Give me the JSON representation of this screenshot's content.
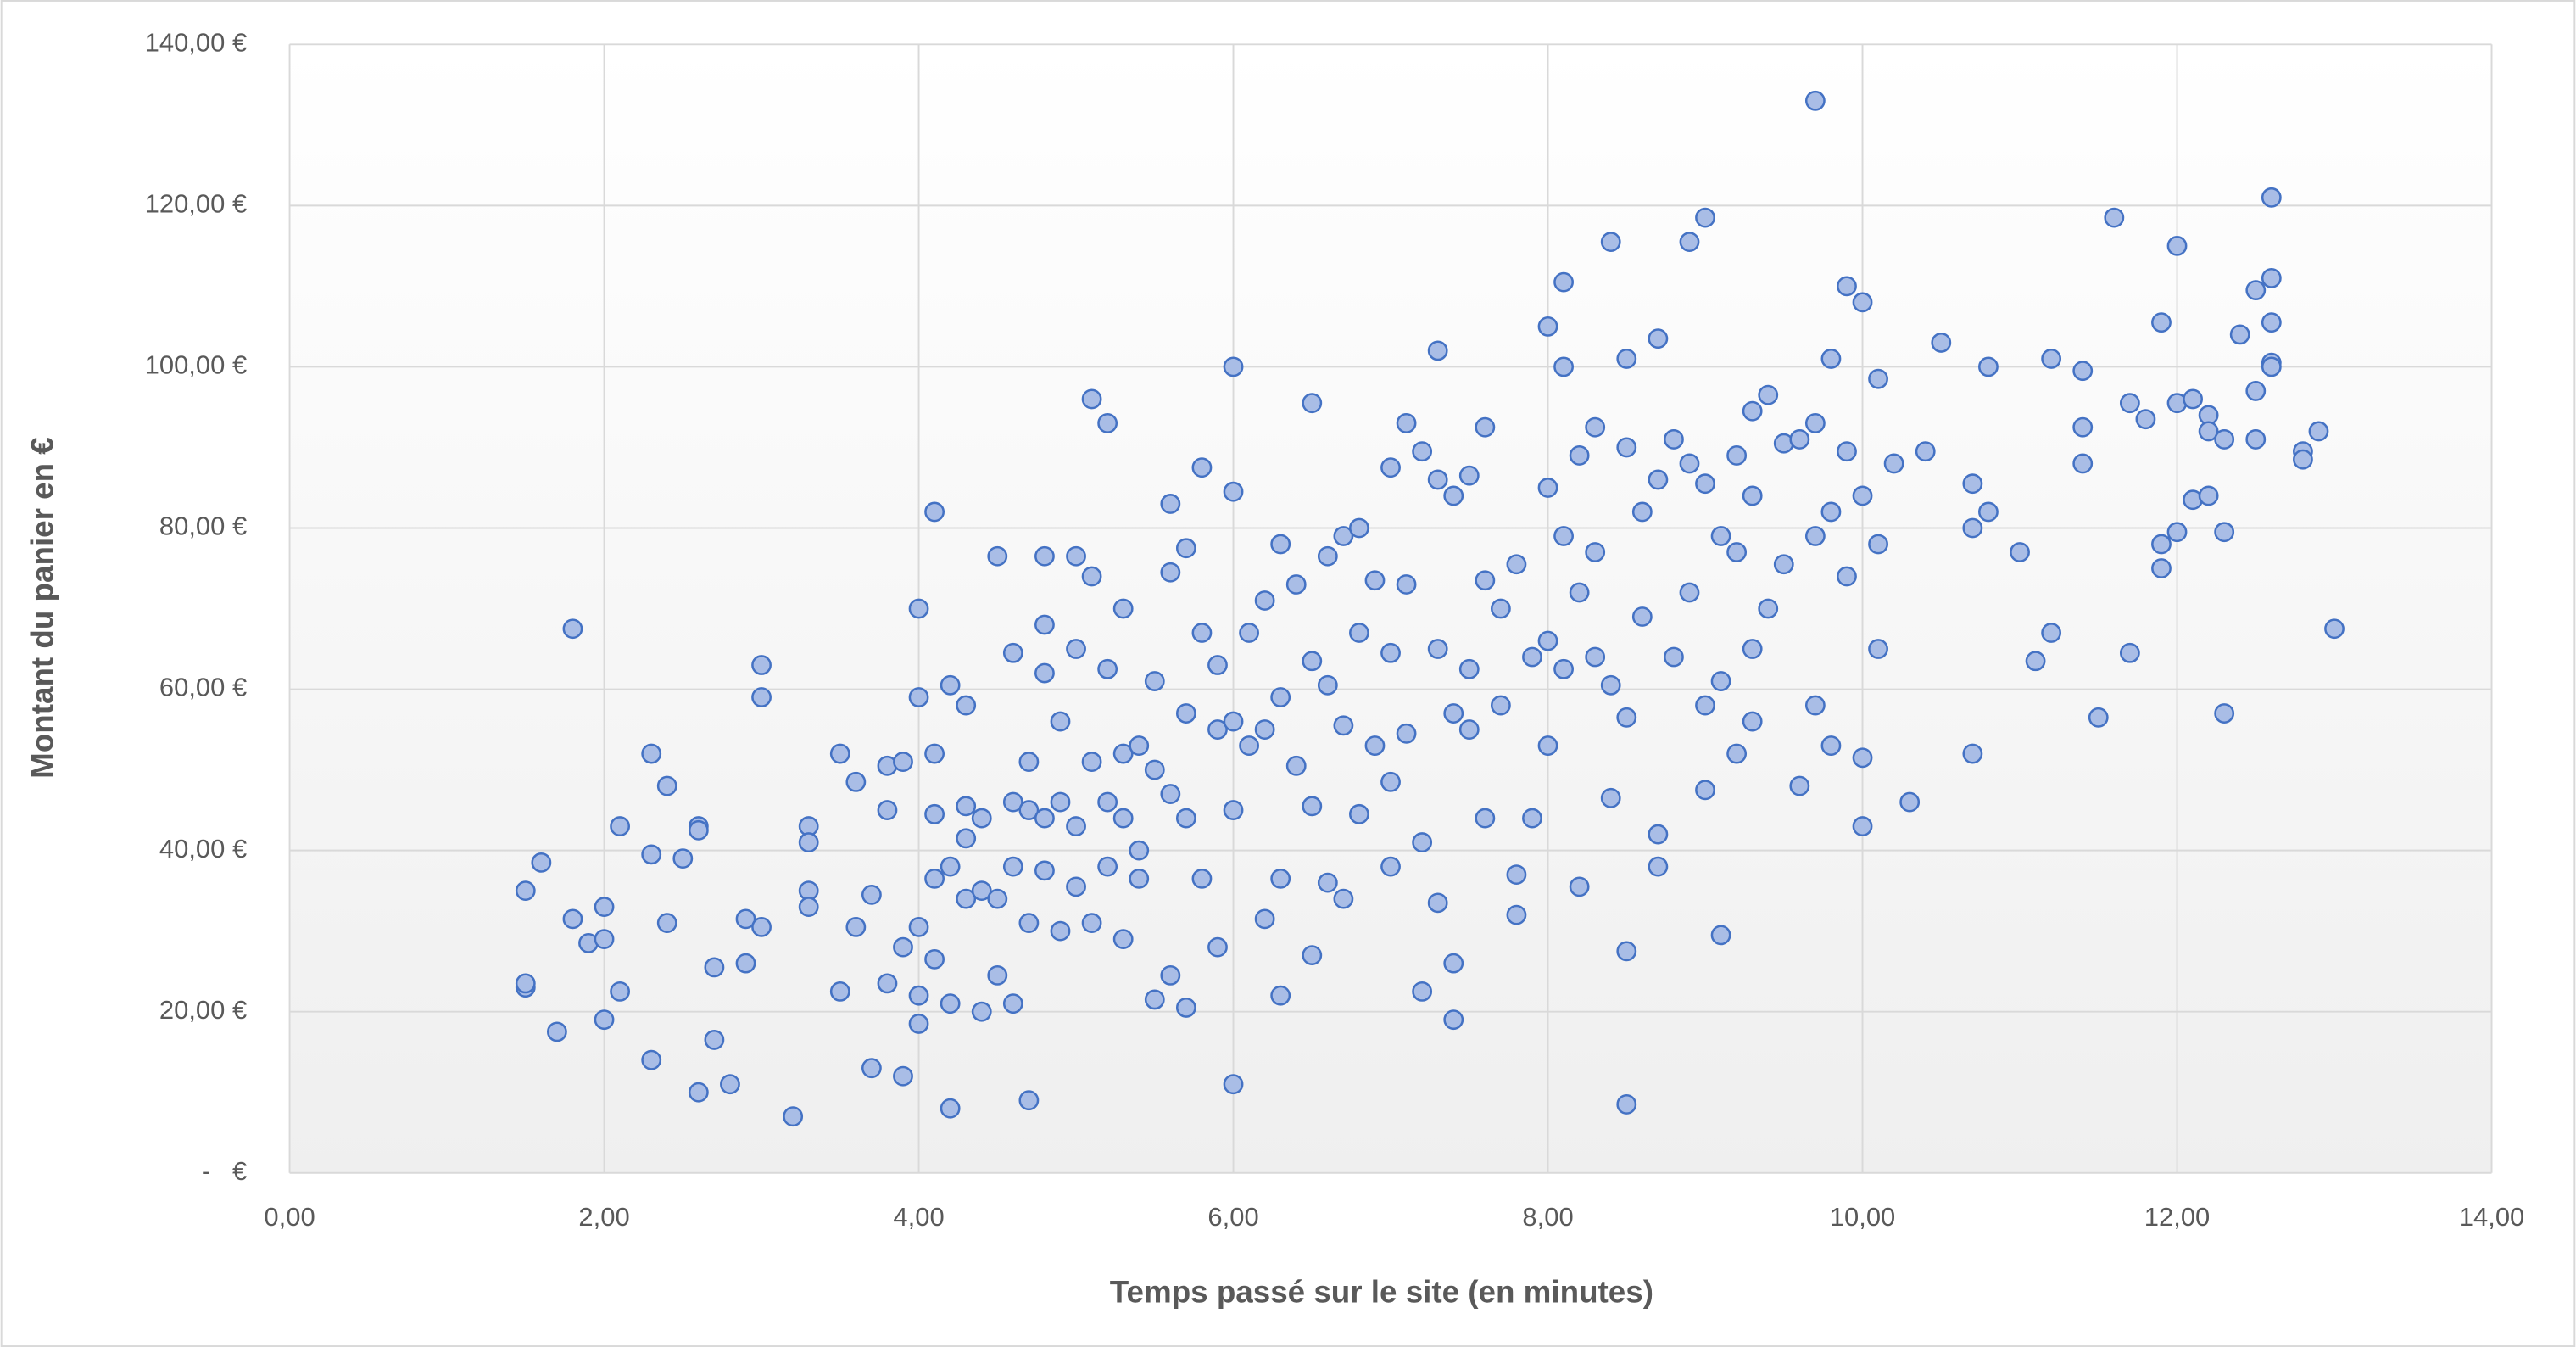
{
  "chart_data": {
    "type": "scatter",
    "x_label": "Temps passé sur le site (en minutes)",
    "y_label": "Montant du panier en €",
    "color": "#a9bde6",
    "edge_color": "#4472c4",
    "grid": true,
    "xlim": [
      0,
      14
    ],
    "ylim": [
      0,
      140
    ],
    "xticks": [
      {
        "value": 0,
        "label": "0,00"
      },
      {
        "value": 2,
        "label": "2,00"
      },
      {
        "value": 4,
        "label": "4,00"
      },
      {
        "value": 6,
        "label": "6,00"
      },
      {
        "value": 8,
        "label": "8,00"
      },
      {
        "value": 10,
        "label": "10,00"
      },
      {
        "value": 12,
        "label": "12,00"
      },
      {
        "value": 14,
        "label": "14,00"
      }
    ],
    "yticks": [
      {
        "value": 0,
        "label": "  -   €"
      },
      {
        "value": 20,
        "label": "20,00 €"
      },
      {
        "value": 40,
        "label": "40,00 €"
      },
      {
        "value": 60,
        "label": "60,00 €"
      },
      {
        "value": 80,
        "label": "80,00 €"
      },
      {
        "value": 100,
        "label": "100,00 €"
      },
      {
        "value": 120,
        "label": "120,00 €"
      },
      {
        "value": 140,
        "label": "140,00 €"
      }
    ],
    "x": [
      1.5,
      1.5,
      1.5,
      1.6,
      1.7,
      1.8,
      1.8,
      1.9,
      2.0,
      2.0,
      2.0,
      2.1,
      2.1,
      2.3,
      2.3,
      2.3,
      2.4,
      2.4,
      2.5,
      2.6,
      2.6,
      2.6,
      2.7,
      2.7,
      2.8,
      2.9,
      2.9,
      3.0,
      3.0,
      3.0,
      3.2,
      3.3,
      3.3,
      3.3,
      3.3,
      3.5,
      3.5,
      3.6,
      3.6,
      3.7,
      3.7,
      3.8,
      3.8,
      3.8,
      3.9,
      3.9,
      3.9,
      4.0,
      4.0,
      4.0,
      4.0,
      4.0,
      4.1,
      4.1,
      4.1,
      4.1,
      4.1,
      4.2,
      4.2,
      4.2,
      4.2,
      4.3,
      4.3,
      4.3,
      4.3,
      4.4,
      4.4,
      4.4,
      4.5,
      4.5,
      4.5,
      4.6,
      4.6,
      4.6,
      4.6,
      4.7,
      4.7,
      4.7,
      4.7,
      4.8,
      4.8,
      4.8,
      4.8,
      4.8,
      4.9,
      4.9,
      4.9,
      5.0,
      5.0,
      5.0,
      5.0,
      5.1,
      5.1,
      5.1,
      5.1,
      5.2,
      5.2,
      5.2,
      5.2,
      5.3,
      5.3,
      5.3,
      5.3,
      5.4,
      5.4,
      5.4,
      5.5,
      5.5,
      5.5,
      5.6,
      5.6,
      5.6,
      5.6,
      5.7,
      5.7,
      5.7,
      5.7,
      5.8,
      5.8,
      5.8,
      5.9,
      5.9,
      5.9,
      6.0,
      6.0,
      6.0,
      6.0,
      6.0,
      6.1,
      6.1,
      6.2,
      6.2,
      6.2,
      6.3,
      6.3,
      6.3,
      6.3,
      6.4,
      6.4,
      6.5,
      6.5,
      6.5,
      6.5,
      6.6,
      6.6,
      6.6,
      6.7,
      6.7,
      6.7,
      6.8,
      6.8,
      6.8,
      6.9,
      6.9,
      7.0,
      7.0,
      7.0,
      7.0,
      7.1,
      7.1,
      7.1,
      7.2,
      7.2,
      7.2,
      7.3,
      7.3,
      7.3,
      7.3,
      7.4,
      7.4,
      7.4,
      7.4,
      7.5,
      7.5,
      7.5,
      7.6,
      7.6,
      7.6,
      7.7,
      7.7,
      7.8,
      7.8,
      7.8,
      7.9,
      7.9,
      8.0,
      8.0,
      8.0,
      8.0,
      8.1,
      8.1,
      8.1,
      8.1,
      8.2,
      8.2,
      8.2,
      8.3,
      8.3,
      8.3,
      8.4,
      8.4,
      8.4,
      8.5,
      8.5,
      8.5,
      8.5,
      8.5,
      8.6,
      8.6,
      8.7,
      8.7,
      8.7,
      8.7,
      8.8,
      8.8,
      8.9,
      8.9,
      8.9,
      9.0,
      9.0,
      9.0,
      9.0,
      9.1,
      9.1,
      9.1,
      9.2,
      9.2,
      9.2,
      9.3,
      9.3,
      9.3,
      9.3,
      9.4,
      9.4,
      9.5,
      9.5,
      9.6,
      9.6,
      9.7,
      9.7,
      9.7,
      9.7,
      9.8,
      9.8,
      9.8,
      9.9,
      9.9,
      9.9,
      10.0,
      10.0,
      10.0,
      10.0,
      10.1,
      10.1,
      10.1,
      10.2,
      10.3,
      10.4,
      10.5,
      10.7,
      10.7,
      10.7,
      10.8,
      10.8,
      11.0,
      11.1,
      11.2,
      11.2,
      11.4,
      11.4,
      11.4,
      11.5,
      11.6,
      11.7,
      11.7,
      11.8,
      11.9,
      11.9,
      11.9,
      12.0,
      12.0,
      12.0,
      12.1,
      12.1,
      12.2,
      12.2,
      12.2,
      12.3,
      12.3,
      12.3,
      12.4,
      12.5,
      12.5,
      12.5,
      12.6,
      12.6,
      12.6,
      12.6,
      12.6,
      12.8,
      12.8,
      12.9,
      13.0
    ],
    "values": [
      23,
      23.5,
      35,
      38.5,
      17.5,
      67.5,
      31.5,
      28.5,
      33,
      29,
      19,
      43,
      22.5,
      52,
      39.5,
      14,
      48,
      31,
      39,
      43,
      42.5,
      10,
      25.5,
      16.5,
      11,
      31.5,
      26,
      63,
      59,
      30.5,
      7,
      43,
      41,
      35,
      33,
      52,
      22.5,
      48.5,
      30.5,
      34.5,
      13,
      50.5,
      45,
      23.5,
      51,
      28,
      12,
      59,
      70,
      30.5,
      22,
      18.5,
      82,
      52,
      44.5,
      36.5,
      26.5,
      60.5,
      38,
      21,
      8,
      58,
      45.5,
      41.5,
      34,
      44,
      35,
      20,
      76.5,
      34,
      24.5,
      64.5,
      46,
      38,
      21,
      51,
      45,
      31,
      9,
      76.5,
      68,
      62,
      44,
      37.5,
      56,
      46,
      30,
      76.5,
      65,
      43,
      35.5,
      96,
      74,
      51,
      31,
      93,
      62.5,
      46,
      38,
      70,
      52,
      44,
      29,
      53,
      40,
      36.5,
      61,
      50,
      21.5,
      83,
      74.5,
      47,
      24.5,
      77.5,
      57,
      44,
      20.5,
      87.5,
      67,
      36.5,
      63,
      55,
      28,
      100,
      84.5,
      56,
      45,
      11,
      67,
      53,
      71,
      55,
      31.5,
      78,
      59,
      36.5,
      22,
      73,
      50.5,
      95.5,
      63.5,
      45.5,
      27,
      76.5,
      60.5,
      36,
      79,
      55.5,
      34,
      80,
      67,
      44.5,
      73.5,
      53,
      87.5,
      64.5,
      48.5,
      38,
      93,
      73,
      54.5,
      89.5,
      41,
      22.5,
      102,
      86,
      65,
      33.5,
      84,
      57,
      26,
      19,
      86.5,
      62.5,
      55,
      92.5,
      73.5,
      44,
      70,
      58,
      75.5,
      37,
      32,
      64,
      44,
      105,
      85,
      66,
      53,
      110.5,
      100,
      79,
      62.5,
      89,
      72,
      35.5,
      92.5,
      77,
      64,
      115.5,
      60.5,
      46.5,
      101,
      90,
      56.5,
      27.5,
      8.5,
      82,
      69,
      103.5,
      86,
      42,
      38,
      91,
      64,
      115.5,
      88,
      72,
      118.5,
      85.5,
      58,
      47.5,
      79,
      61,
      29.5,
      89,
      77,
      52,
      94.5,
      84,
      65,
      56,
      96.5,
      70,
      90.5,
      75.5,
      91,
      48,
      133,
      93,
      79,
      58,
      101,
      82,
      53,
      110,
      89.5,
      74,
      108,
      84,
      51.5,
      43,
      98.5,
      78,
      65,
      88,
      46,
      89.5,
      103,
      85.5,
      80,
      52,
      100,
      82,
      77,
      63.5,
      101,
      67,
      99.5,
      92.5,
      88,
      56.5,
      118.5,
      95.5,
      64.5,
      93.5,
      105.5,
      78,
      75,
      115,
      95.5,
      79.5,
      96,
      83.5,
      94,
      92,
      84,
      91,
      79.5,
      57,
      104,
      109.5,
      97,
      91,
      111,
      105.5,
      100.5,
      100,
      121,
      89.5,
      88.5,
      92,
      67.5
    ]
  }
}
